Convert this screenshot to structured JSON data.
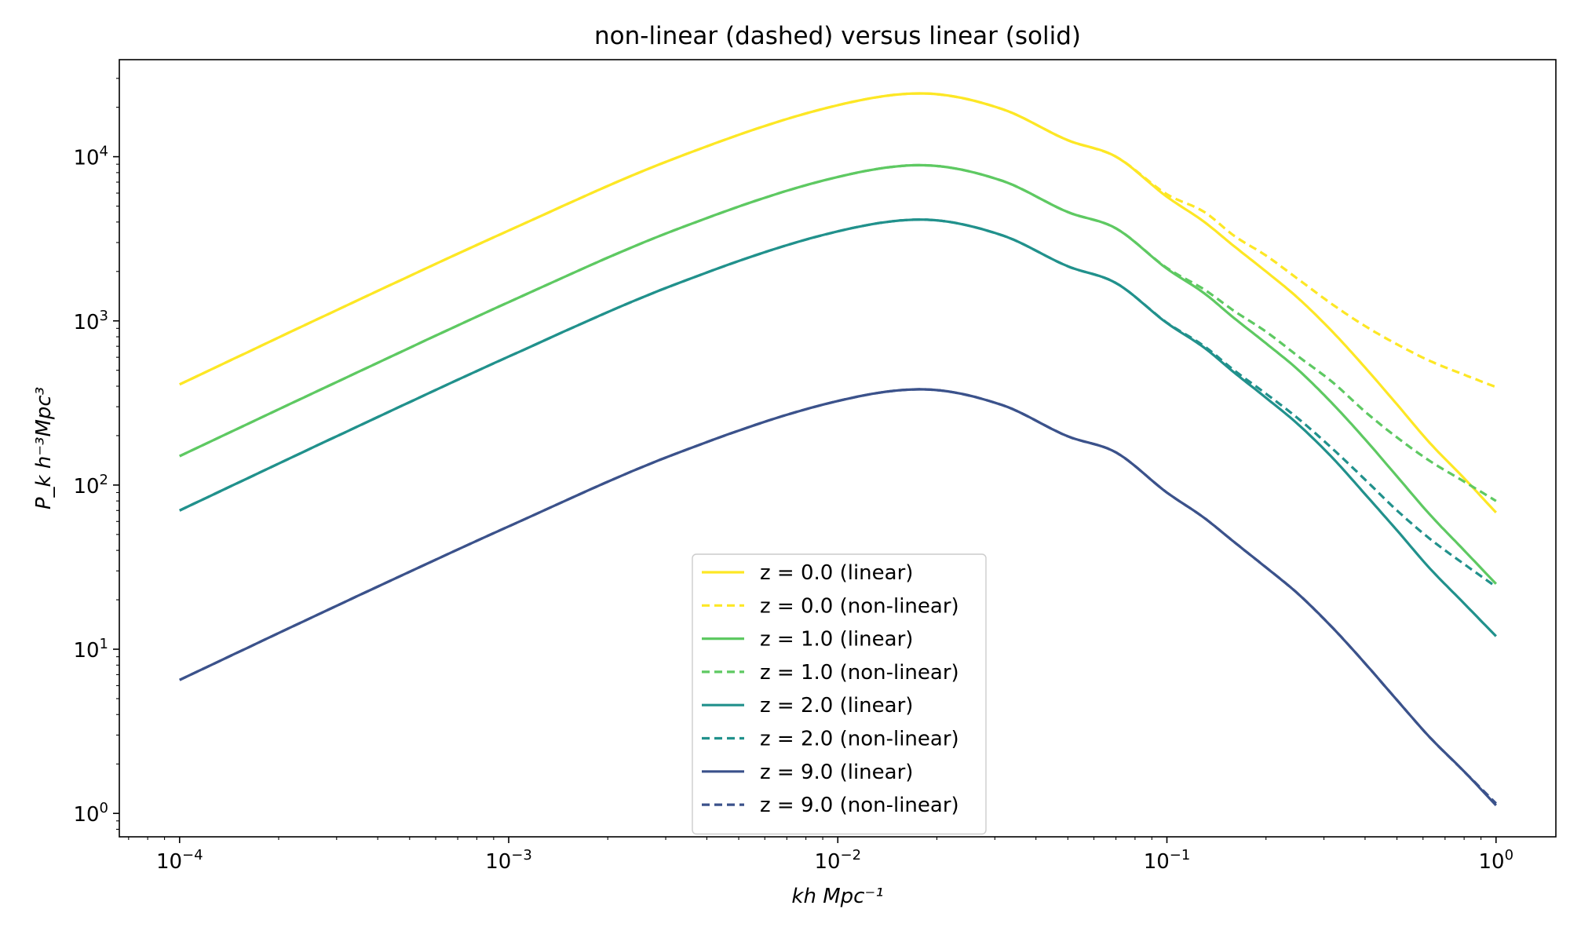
{
  "chart_data": {
    "type": "line",
    "title": "non-linear (dashed) versus linear (solid)",
    "xlabel": "kh Mpc⁻¹",
    "ylabel": "P_k h⁻³Mpc³",
    "xscale": "log",
    "yscale": "log",
    "xlim": [
      6.56e-05,
      1.52
    ],
    "ylim": [
      0.72,
      39000
    ],
    "x_ticks": [
      {
        "value": 0.0001,
        "base": "10",
        "exp": "−4"
      },
      {
        "value": 0.001,
        "base": "10",
        "exp": "−3"
      },
      {
        "value": 0.01,
        "base": "10",
        "exp": "−2"
      },
      {
        "value": 0.1,
        "base": "10",
        "exp": "−1"
      },
      {
        "value": 1,
        "base": "10",
        "exp": "0"
      }
    ],
    "y_ticks": [
      {
        "value": 1,
        "base": "10",
        "exp": "0"
      },
      {
        "value": 10,
        "base": "10",
        "exp": "1"
      },
      {
        "value": 100,
        "base": "10",
        "exp": "2"
      },
      {
        "value": 1000,
        "base": "10",
        "exp": "3"
      },
      {
        "value": 10000,
        "base": "10",
        "exp": "4"
      }
    ],
    "grid": false,
    "legend_position": "lower-center",
    "x": [
      0.0001,
      0.000316,
      0.001,
      0.00316,
      0.01,
      0.0178,
      0.0316,
      0.05,
      0.07,
      0.1,
      0.13,
      0.16,
      0.2,
      0.25,
      0.32,
      0.4,
      0.5,
      0.63,
      0.8,
      1.0
    ],
    "series": [
      {
        "name": "z = 0.0 (linear)",
        "color": "#fde725",
        "dash": "solid",
        "values": [
          410,
          1220,
          3550,
          9680,
          20600,
          24300,
          19500,
          12600,
          10000,
          5700,
          4000,
          2850,
          2000,
          1380,
          850,
          520,
          310,
          180,
          110,
          68
        ]
      },
      {
        "name": "z = 0.0 (non-linear)",
        "color": "#fde725",
        "dash": "dashed",
        "values": [
          410,
          1220,
          3550,
          9680,
          20600,
          24300,
          19500,
          12600,
          10000,
          5900,
          4600,
          3300,
          2500,
          1800,
          1250,
          930,
          720,
          570,
          470,
          395
        ]
      },
      {
        "name": "z = 1.0 (linear)",
        "color": "#5ec962",
        "dash": "solid",
        "values": [
          150,
          445,
          1300,
          3540,
          7530,
          8880,
          7130,
          4600,
          3660,
          2080,
          1470,
          1040,
          730,
          505,
          310,
          190,
          113,
          66,
          40,
          25
        ]
      },
      {
        "name": "z = 1.0 (non-linear)",
        "color": "#5ec962",
        "dash": "dashed",
        "values": [
          150,
          445,
          1300,
          3540,
          7530,
          8880,
          7130,
          4600,
          3660,
          2100,
          1550,
          1150,
          860,
          610,
          420,
          280,
          195,
          140,
          105,
          80
        ]
      },
      {
        "name": "z = 2.0 (linear)",
        "color": "#21918c",
        "dash": "solid",
        "values": [
          70,
          208,
          606,
          1650,
          3510,
          4140,
          3320,
          2150,
          1700,
          970,
          685,
          485,
          340,
          235,
          145,
          88,
          53,
          31,
          19,
          12
        ]
      },
      {
        "name": "z = 2.0 (non-linear)",
        "color": "#21918c",
        "dash": "dashed",
        "values": [
          70,
          208,
          606,
          1650,
          3510,
          4140,
          3320,
          2150,
          1700,
          975,
          700,
          500,
          360,
          255,
          165,
          108,
          70,
          47,
          33,
          24
        ]
      },
      {
        "name": "z = 9.0 (linear)",
        "color": "#3b528b",
        "dash": "solid",
        "values": [
          6.5,
          19.3,
          56,
          153,
          325,
          383,
          307,
          198,
          158,
          90,
          63,
          45,
          31.5,
          21.8,
          13.4,
          8.2,
          4.9,
          2.9,
          1.8,
          1.12
        ]
      },
      {
        "name": "z = 9.0 (non-linear)",
        "color": "#3b528b",
        "dash": "dashed",
        "values": [
          6.5,
          19.3,
          56,
          153,
          325,
          383,
          307,
          198,
          158,
          90,
          63,
          45,
          31.5,
          21.8,
          13.4,
          8.2,
          4.9,
          2.9,
          1.8,
          1.15
        ]
      }
    ]
  }
}
